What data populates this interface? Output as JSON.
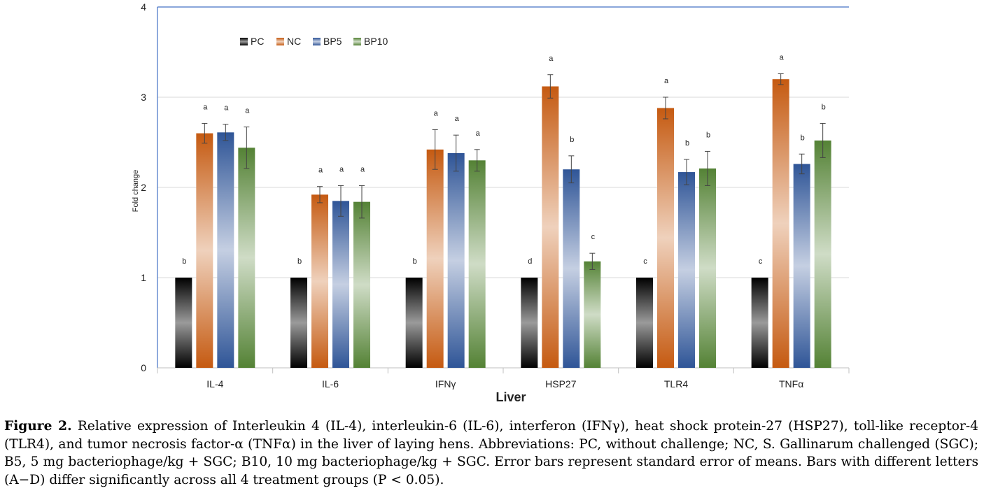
{
  "chart_data": {
    "type": "bar",
    "title": "",
    "xlabel": "Liver",
    "ylabel": "Fold change",
    "ylim": [
      0,
      4
    ],
    "yticks": [
      0,
      1,
      2,
      3,
      4
    ],
    "grid": true,
    "legend_position": "top-left",
    "categories": [
      "IL-4",
      "IL-6",
      "IFNγ",
      "HSP27",
      "TLR4",
      "TNFα"
    ],
    "series": [
      {
        "name": "PC",
        "color": "#000000",
        "values": [
          1.0,
          1.0,
          1.0,
          1.0,
          1.0,
          1.0
        ],
        "errors": [
          0,
          0,
          0,
          0,
          0,
          0
        ],
        "letters": [
          "b",
          "b",
          "b",
          "d",
          "c",
          "c"
        ]
      },
      {
        "name": "NC",
        "color": "#c55a11",
        "values": [
          2.6,
          1.92,
          2.42,
          3.12,
          2.88,
          3.2
        ],
        "errors": [
          0.11,
          0.09,
          0.22,
          0.13,
          0.12,
          0.06
        ],
        "letters": [
          "a",
          "a",
          "a",
          "a",
          "a",
          "a"
        ]
      },
      {
        "name": "BP5",
        "color": "#2f5597",
        "values": [
          2.61,
          1.85,
          2.38,
          2.2,
          2.17,
          2.26
        ],
        "errors": [
          0.09,
          0.17,
          0.2,
          0.15,
          0.14,
          0.11
        ],
        "letters": [
          "a",
          "a",
          "a",
          "b",
          "b",
          "b"
        ]
      },
      {
        "name": "BP10",
        "color": "#548235",
        "values": [
          2.44,
          1.84,
          2.3,
          1.18,
          2.21,
          2.52
        ],
        "errors": [
          0.23,
          0.18,
          0.12,
          0.09,
          0.19,
          0.19
        ],
        "letters": [
          "a",
          "a",
          "a",
          "c",
          "b",
          "b"
        ]
      }
    ]
  },
  "caption": {
    "lead": "Figure 2.",
    "text": "Relative expression of Interleukin 4 (IL-4), interleukin-6 (IL-6), interferon (IFNγ), heat shock protein-27 (HSP27), toll-like receptor-4 (TLR4), and tumor necrosis factor-α (TNFα) in the liver of laying hens. Abbreviations: PC, without challenge; NC, S. Gallinarum challenged (SGC); B5, 5 mg bacteriophage/kg + SGC; B10, 10 mg bacteriophage/kg + SGC. Error bars represent standard error of means. Bars with different letters (A−D) differ significantly across all 4 treatment groups (P < 0.05)."
  }
}
